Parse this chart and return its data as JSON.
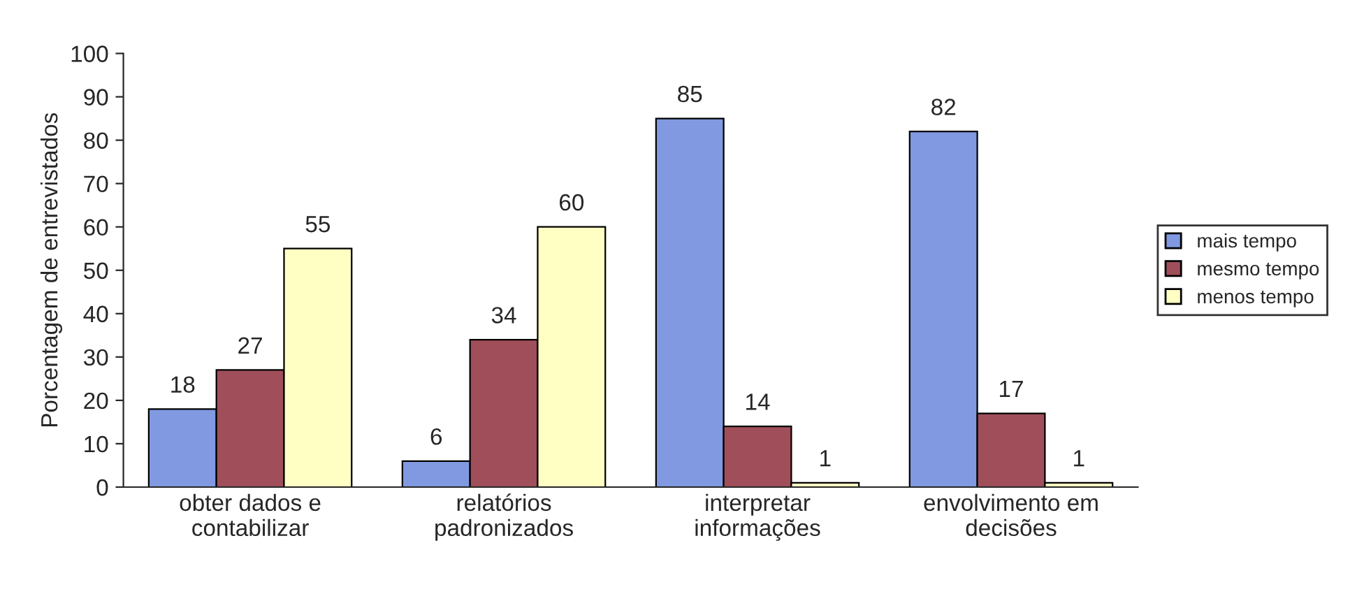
{
  "chart_data": {
    "type": "bar",
    "ylabel": "Porcentagem de entrevistados",
    "categories": [
      "obter dados e\ncontabilizar",
      "relatórios\npadronizados",
      "interpretar\ninformações",
      "envolvimento em\ndecisões"
    ],
    "series": [
      {
        "name": "mais tempo",
        "color": "#8099e0",
        "values": [
          18,
          6,
          85,
          82
        ]
      },
      {
        "name": "mesmo tempo",
        "color": "#a04f5a",
        "values": [
          27,
          34,
          14,
          17
        ]
      },
      {
        "name": "menos tempo",
        "color": "#ffffc4",
        "values": [
          55,
          60,
          1,
          1
        ]
      }
    ],
    "ylim": [
      0,
      100
    ],
    "yticks": [
      0,
      10,
      20,
      30,
      40,
      50,
      60,
      70,
      80,
      90,
      100
    ],
    "data_labels": true,
    "grid": false,
    "legend": "right"
  }
}
